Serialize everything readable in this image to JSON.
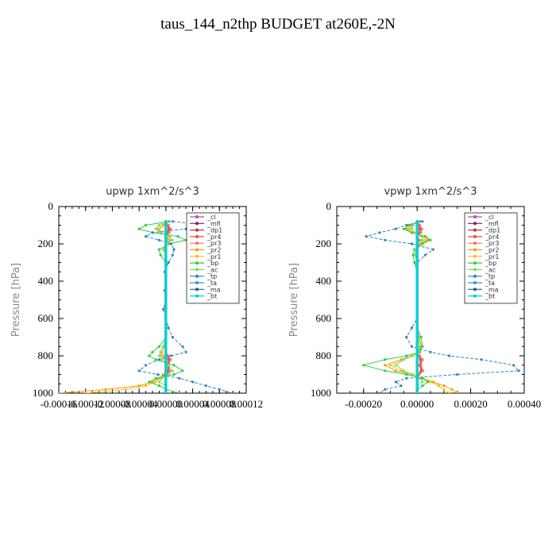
{
  "page_title": "taus_144_n2thp  BUDGET at260E,-2N",
  "chart_data": [
    {
      "type": "line",
      "title": "upwp   1xm^2/s^3",
      "ylabel": "Pressure [hPa]",
      "xlabel": "",
      "y_inverted": true,
      "ylim": [
        0,
        1000
      ],
      "xlim": [
        -0.00016,
        0.00012
      ],
      "x_tick_labels": [
        "-0.00016",
        "-0.00012",
        "-0.00008",
        "-0.00004",
        "0.00000",
        "0.00004",
        "0.00008",
        "0.00012"
      ],
      "x_ticks": [
        -0.00016,
        -0.00012,
        -8e-05,
        -4e-05,
        0.0,
        4e-05,
        8e-05,
        0.00012
      ],
      "y_ticks": [
        0,
        200,
        400,
        600,
        800,
        1000
      ],
      "y_tick_labels": [
        "0",
        "200",
        "400",
        "600",
        "800",
        "1000"
      ],
      "legend_position": "top-right",
      "pressure": [
        80,
        100,
        120,
        140,
        160,
        180,
        200,
        230,
        260,
        300,
        350,
        400,
        450,
        500,
        550,
        600,
        650,
        700,
        750,
        780,
        800,
        820,
        850,
        880,
        900,
        920,
        940,
        960,
        980,
        1000
      ],
      "series": [
        {
          "name": "_cl",
          "color": "#9b59b6",
          "values": [
            0,
            0,
            0,
            0,
            0,
            0,
            0,
            0,
            0,
            0,
            0,
            0,
            0,
            0,
            0,
            0,
            0,
            0,
            0,
            0,
            0,
            0,
            0,
            0,
            0,
            0,
            0,
            0,
            0,
            0
          ]
        },
        {
          "name": "_mfl",
          "color": "#7a1f5c",
          "values": [
            0,
            0,
            0,
            0,
            0,
            0,
            0,
            0,
            0,
            0,
            0,
            0,
            0,
            0,
            0,
            0,
            0,
            0,
            0,
            0,
            0,
            0,
            0,
            0,
            0,
            0,
            0,
            0,
            0,
            0
          ]
        },
        {
          "name": "_dp1",
          "color": "#c0392b",
          "values": [
            0,
            3e-06,
            6e-06,
            4e-06,
            0,
            3e-06,
            0,
            0,
            0,
            0,
            0,
            0,
            0,
            0,
            0,
            0,
            0,
            0,
            0,
            0,
            3e-06,
            6e-06,
            3e-06,
            5e-06,
            2e-06,
            0,
            0,
            0,
            0,
            0
          ]
        },
        {
          "name": "_pr4",
          "color": "#e74c3c",
          "values": [
            0,
            2e-06,
            4e-06,
            3e-06,
            0,
            2e-06,
            0,
            0,
            0,
            0,
            0,
            0,
            0,
            0,
            0,
            0,
            0,
            0,
            0,
            0,
            2e-06,
            4e-06,
            2e-06,
            3e-06,
            1e-06,
            0,
            0,
            0,
            0,
            0
          ]
        },
        {
          "name": "_pr3",
          "color": "#ff6b6b",
          "values": [
            0,
            4e-06,
            7e-06,
            5e-06,
            0,
            4e-06,
            0,
            0,
            0,
            0,
            0,
            0,
            0,
            0,
            0,
            0,
            0,
            0,
            0,
            0,
            4e-06,
            7e-06,
            4e-06,
            6e-06,
            3e-06,
            0,
            0,
            0,
            0,
            0
          ]
        },
        {
          "name": "_pr2",
          "color": "#f39c12",
          "values": [
            0,
            -4e-06,
            -1.2e-05,
            -8e-06,
            4e-06,
            6e-06,
            0,
            -4e-06,
            0,
            0,
            0,
            0,
            0,
            0,
            0,
            0,
            0,
            0,
            -4e-06,
            -8e-06,
            -6e-06,
            0,
            4e-06,
            0,
            -4e-06,
            -1e-05,
            -2e-05,
            -4e-05,
            -9e-05,
            -0.00016
          ]
        },
        {
          "name": "_pr1",
          "color": "#f1c40f",
          "values": [
            0,
            -2e-06,
            -1e-05,
            -6e-06,
            2e-06,
            4e-06,
            0,
            -2e-06,
            0,
            0,
            0,
            0,
            0,
            0,
            0,
            0,
            0,
            0,
            -2e-06,
            -6e-06,
            -4e-06,
            0,
            2e-06,
            0,
            -2e-06,
            -8e-06,
            -1.6e-05,
            -3e-05,
            -6e-05,
            -0.00012
          ]
        },
        {
          "name": "_bp",
          "color": "#2ecc40",
          "values": [
            5e-06,
            -3e-05,
            -4e-05,
            -2e-05,
            1.8e-05,
            3e-05,
            5e-06,
            -1e-05,
            -8e-06,
            0,
            0,
            0,
            0,
            0,
            0,
            0,
            0,
            0,
            -1e-05,
            -2e-05,
            -2.5e-05,
            -1.5e-05,
            1.2e-05,
            2.5e-05,
            1.2e-05,
            -1.5e-05,
            -2.5e-05,
            -1e-05,
            0,
            2e-05
          ]
        },
        {
          "name": "_ac",
          "color": "#7fdb6a",
          "values": [
            0,
            -1e-05,
            -1.5e-05,
            -8e-06,
            6e-06,
            1e-05,
            0,
            -4e-06,
            0,
            0,
            0,
            0,
            0,
            0,
            0,
            0,
            0,
            0,
            -4e-06,
            -8e-06,
            -1e-05,
            -6e-06,
            4e-06,
            1e-05,
            4e-06,
            -6e-06,
            -1e-05,
            0,
            0,
            0
          ]
        },
        {
          "name": "_tp",
          "color": "#2e86c1",
          "values": [
            1e-05,
            6e-05,
            3e-05,
            -2e-05,
            -3e-05,
            -1e-05,
            8e-06,
            1.2e-05,
            1e-05,
            4e-06,
            -2e-06,
            0,
            -2e-06,
            0,
            -4e-06,
            0,
            4e-06,
            1e-05,
            2.5e-05,
            3e-05,
            8e-06,
            -1e-05,
            -3e-05,
            -4e-05,
            -1.2e-05,
            2e-05,
            4e-05,
            6e-05,
            8e-05,
            0.0001
          ]
        },
        {
          "name": "_ta",
          "color": "#3498db",
          "values": [
            0,
            0,
            0,
            0,
            0,
            0,
            0,
            0,
            0,
            0,
            0,
            0,
            0,
            0,
            0,
            0,
            0,
            0,
            0,
            0,
            0,
            0,
            0,
            0,
            0,
            0,
            0,
            0,
            0,
            0
          ]
        },
        {
          "name": "_ma",
          "color": "#1f618d",
          "values": [
            0,
            0,
            0,
            0,
            0,
            0,
            0,
            0,
            0,
            0,
            0,
            0,
            0,
            0,
            0,
            0,
            0,
            0,
            0,
            0,
            0,
            0,
            0,
            0,
            0,
            0,
            0,
            0,
            0,
            0
          ]
        },
        {
          "name": "_bt",
          "color": "#00d5d5",
          "values": [
            0,
            0,
            0,
            0,
            0,
            0,
            0,
            0,
            0,
            0,
            0,
            0,
            0,
            0,
            0,
            0,
            0,
            0,
            0,
            0,
            0,
            0,
            0,
            0,
            0,
            0,
            0,
            0,
            0,
            0
          ]
        }
      ]
    },
    {
      "type": "line",
      "title": "vpwp   1xm^2/s^3",
      "ylabel": "Pressure [hPa]",
      "xlabel": "",
      "y_inverted": true,
      "ylim": [
        0,
        1000
      ],
      "xlim": [
        -0.0003,
        0.0004
      ],
      "x_tick_labels": [
        "-0.00020",
        "0.00000",
        "0.00020",
        "0.00040"
      ],
      "x_ticks": [
        -0.0002,
        0.0,
        0.0002,
        0.0004
      ],
      "y_ticks": [
        0,
        200,
        400,
        600,
        800,
        1000
      ],
      "y_tick_labels": [
        "0",
        "200",
        "400",
        "600",
        "800",
        "1000"
      ],
      "legend_position": "top-right",
      "pressure": [
        80,
        100,
        120,
        140,
        160,
        180,
        200,
        230,
        260,
        300,
        350,
        400,
        450,
        500,
        550,
        600,
        650,
        700,
        750,
        780,
        800,
        820,
        850,
        880,
        900,
        920,
        940,
        960,
        980,
        1000
      ],
      "series": [
        {
          "name": "_cl",
          "color": "#9b59b6",
          "values": [
            0,
            0,
            0,
            0,
            0,
            0,
            0,
            0,
            0,
            0,
            0,
            0,
            0,
            0,
            0,
            0,
            0,
            0,
            0,
            0,
            0,
            0,
            0,
            0,
            0,
            0,
            0,
            0,
            0,
            0
          ]
        },
        {
          "name": "_mfl",
          "color": "#7a1f5c",
          "values": [
            0,
            0,
            0,
            0,
            0,
            0,
            0,
            0,
            0,
            0,
            0,
            0,
            0,
            0,
            0,
            0,
            0,
            0,
            0,
            0,
            0,
            0,
            0,
            0,
            0,
            0,
            0,
            0,
            0,
            0
          ]
        },
        {
          "name": "_dp1",
          "color": "#c0392b",
          "values": [
            0,
            8e-06,
            1.4e-05,
            1e-05,
            0,
            8e-06,
            0,
            0,
            0,
            0,
            0,
            0,
            0,
            0,
            0,
            0,
            0,
            0,
            0,
            0,
            8e-06,
            1.6e-05,
            1.2e-05,
            1.8e-05,
            6e-06,
            0,
            0,
            0,
            0,
            0
          ]
        },
        {
          "name": "_pr4",
          "color": "#e74c3c",
          "values": [
            0,
            6e-06,
            1e-05,
            8e-06,
            0,
            6e-06,
            0,
            0,
            0,
            0,
            0,
            0,
            0,
            0,
            0,
            0,
            0,
            0,
            0,
            0,
            6e-06,
            1.2e-05,
            9e-06,
            1.4e-05,
            4e-06,
            0,
            0,
            0,
            0,
            0
          ]
        },
        {
          "name": "_pr3",
          "color": "#ff6b6b",
          "values": [
            0,
            1e-05,
            1.8e-05,
            1.4e-05,
            0,
            1e-05,
            0,
            0,
            0,
            0,
            0,
            0,
            0,
            0,
            0,
            0,
            0,
            0,
            0,
            0,
            1e-05,
            2e-05,
            1.5e-05,
            2.2e-05,
            8e-06,
            0,
            0,
            0,
            0,
            0
          ]
        },
        {
          "name": "_pr2",
          "color": "#f39c12",
          "values": [
            0,
            -2e-05,
            -4e-05,
            -2e-05,
            3e-05,
            4e-05,
            1.5e-05,
            0,
            0,
            0,
            0,
            0,
            0,
            0,
            0,
            0,
            0,
            8e-06,
            1.6e-05,
            1e-05,
            -2e-05,
            -6e-05,
            -0.00012,
            -8e-05,
            -2e-05,
            2e-05,
            6e-05,
            0.0001,
            0.00013,
            0.00015
          ]
        },
        {
          "name": "_pr1",
          "color": "#f1c40f",
          "values": [
            0,
            -1.5e-05,
            -3e-05,
            -1.5e-05,
            2e-05,
            3e-05,
            1e-05,
            0,
            0,
            0,
            0,
            0,
            0,
            0,
            0,
            0,
            0,
            6e-06,
            1.2e-05,
            8e-06,
            -1.5e-05,
            -5e-05,
            -0.0001,
            -6e-05,
            -1.5e-05,
            1.5e-05,
            5e-05,
            8e-05,
            0.0001,
            0.00012
          ]
        },
        {
          "name": "_bp",
          "color": "#2ecc40",
          "values": [
            1e-05,
            -3e-05,
            -5e-05,
            -2e-05,
            3e-05,
            5e-05,
            2e-05,
            -1e-05,
            -1.5e-05,
            -1e-05,
            0,
            0,
            0,
            0,
            0,
            0,
            0,
            1.5e-05,
            2e-05,
            1e-05,
            -4e-05,
            -0.00012,
            -0.0002,
            -0.00012,
            -4e-05,
            2e-05,
            4e-05,
            2e-05,
            0,
            0
          ]
        },
        {
          "name": "_ac",
          "color": "#7fdb6a",
          "values": [
            0,
            -1.5e-05,
            -2e-05,
            -1e-05,
            1.5e-05,
            2e-05,
            8e-06,
            -5e-06,
            -8e-06,
            0,
            0,
            0,
            0,
            0,
            0,
            0,
            0,
            6e-06,
            1e-05,
            5e-06,
            -2e-05,
            -5e-05,
            -8e-05,
            -5e-05,
            -2e-05,
            1e-05,
            2e-05,
            0,
            0,
            0
          ]
        },
        {
          "name": "_tp",
          "color": "#2e86c1",
          "values": [
            2e-05,
            -4e-05,
            -8e-05,
            -0.00014,
            -0.00019,
            -0.00012,
            -2e-05,
            6e-05,
            3e-05,
            0,
            0,
            0,
            0,
            0,
            0,
            0,
            -2e-05,
            -4e-05,
            -2e-05,
            5e-05,
            0.00012,
            0.00024,
            0.00036,
            0.00038,
            0.00015,
            -4e-05,
            -8e-05,
            -6e-05,
            -0.00012,
            -0.00014
          ]
        },
        {
          "name": "_ta",
          "color": "#3498db",
          "values": [
            0,
            0,
            0,
            0,
            0,
            0,
            0,
            0,
            0,
            0,
            0,
            0,
            0,
            0,
            0,
            0,
            0,
            0,
            0,
            0,
            0,
            0,
            0,
            0,
            0,
            0,
            0,
            0,
            0,
            0
          ]
        },
        {
          "name": "_ma",
          "color": "#1f618d",
          "values": [
            0,
            0,
            0,
            0,
            0,
            0,
            0,
            0,
            0,
            0,
            0,
            0,
            0,
            0,
            0,
            0,
            0,
            0,
            0,
            0,
            0,
            0,
            0,
            0,
            0,
            0,
            0,
            0,
            0,
            0
          ]
        },
        {
          "name": "_bt",
          "color": "#00d5d5",
          "values": [
            0,
            0,
            0,
            0,
            0,
            0,
            0,
            0,
            0,
            0,
            0,
            0,
            0,
            0,
            0,
            0,
            0,
            0,
            0,
            0,
            0,
            0,
            0,
            0,
            0,
            0,
            0,
            0,
            0,
            0
          ]
        }
      ]
    }
  ]
}
